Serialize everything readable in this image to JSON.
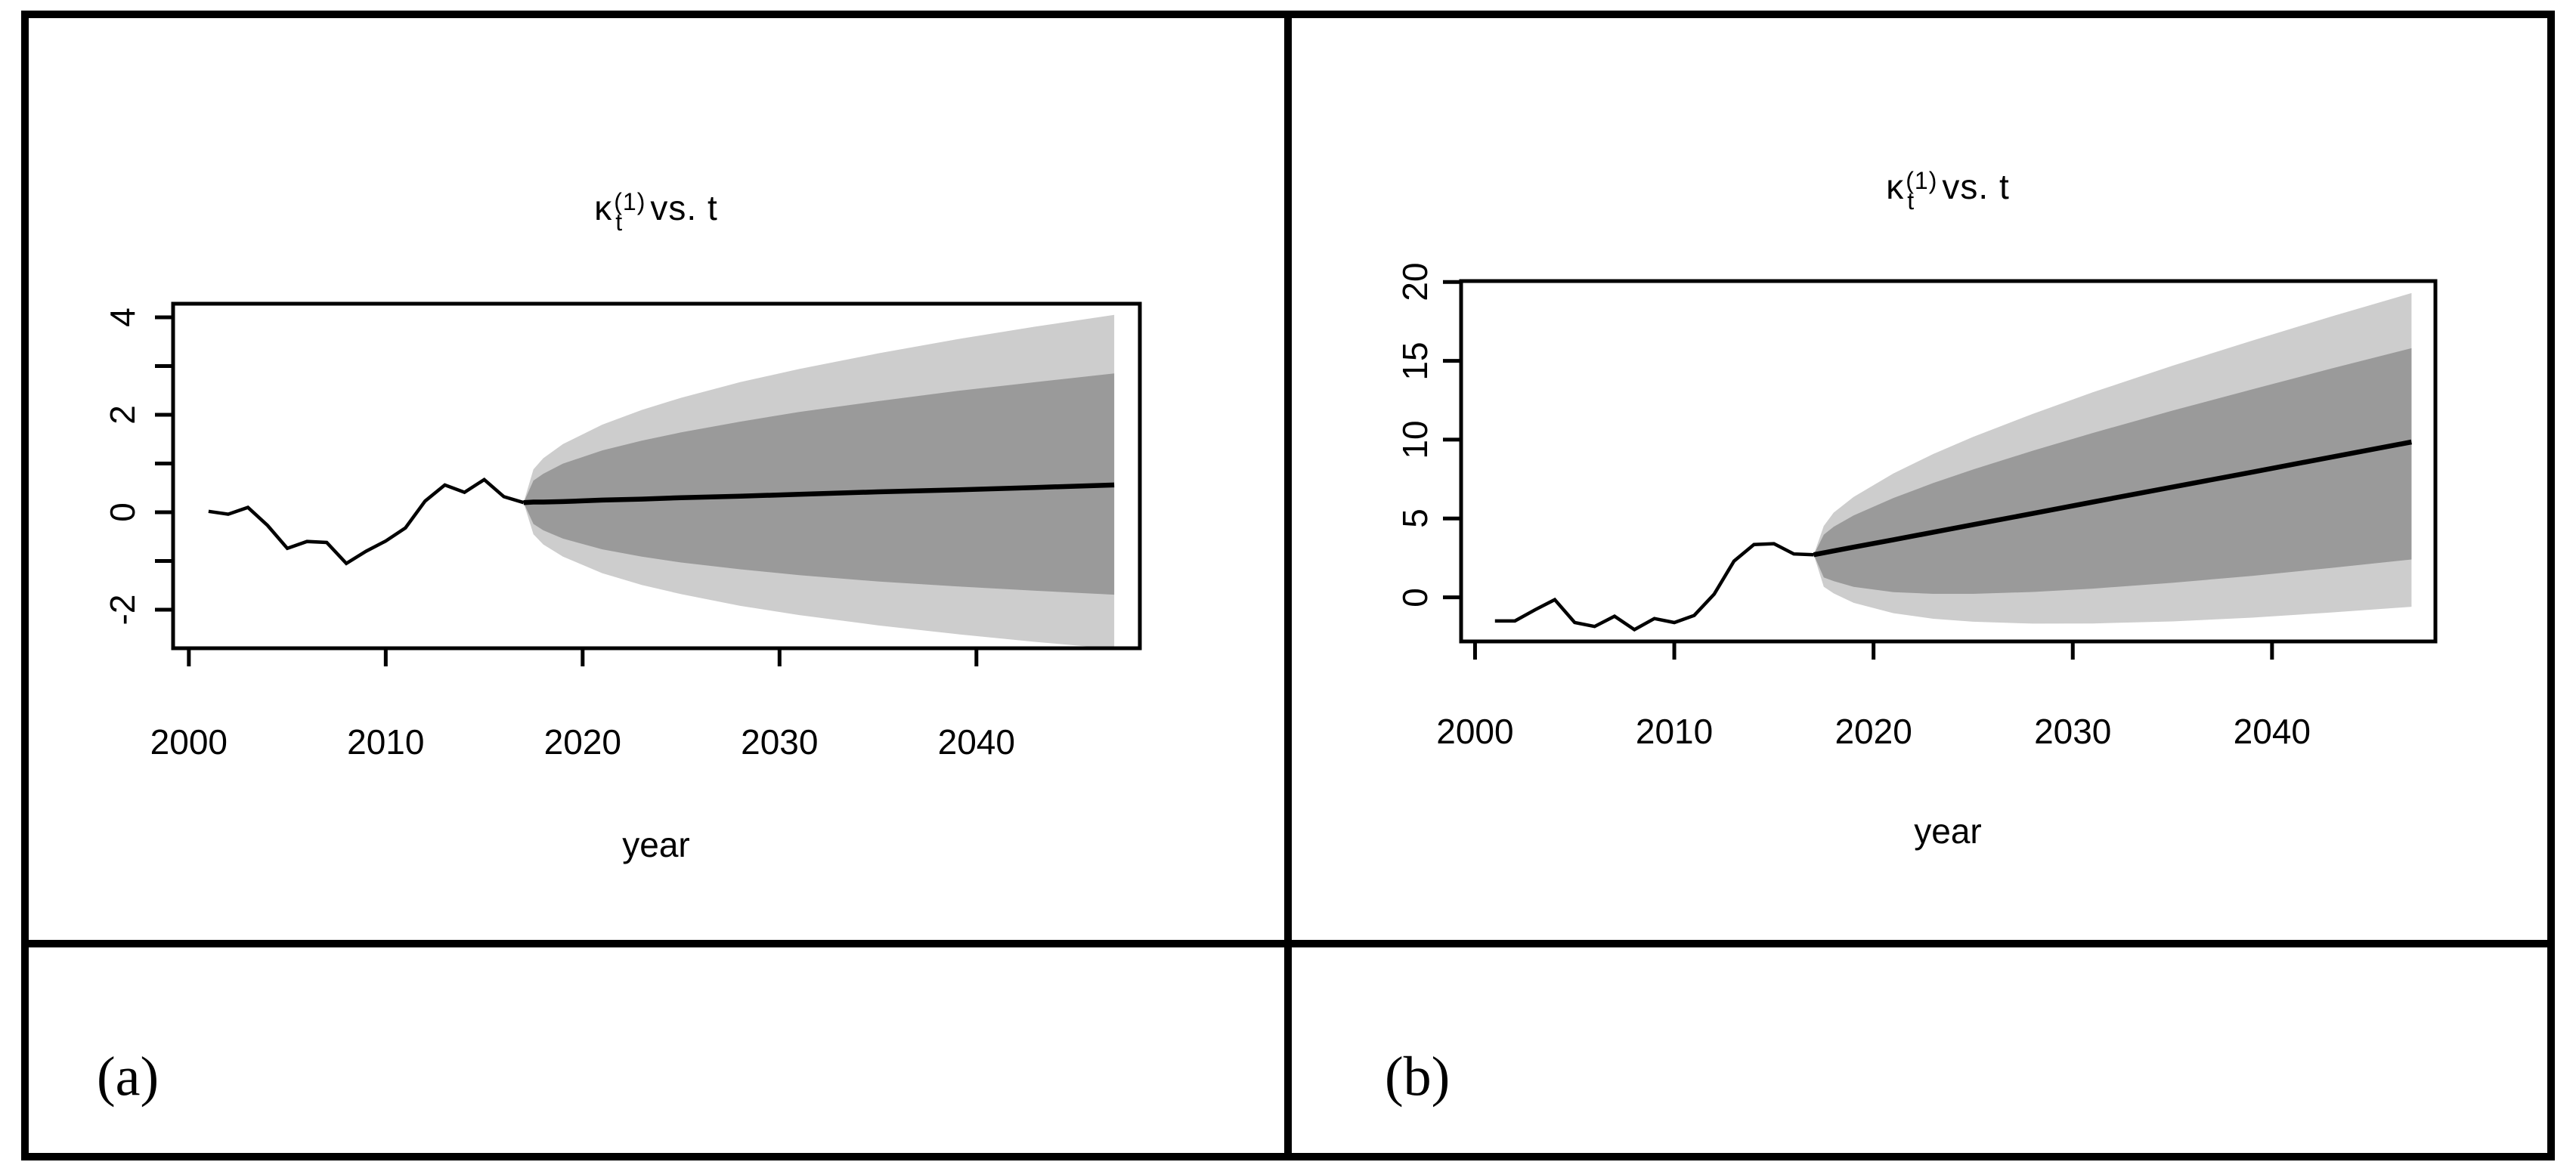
{
  "figure": {
    "kind": "two-panel R fan chart figure",
    "background": "#ffffff",
    "border_color": "#000000"
  },
  "panels": [
    {
      "id": "a",
      "caption": "(a)",
      "title": {
        "kappa": "κ",
        "sub": "t",
        "sup": "(1)",
        "rest": "vs. t"
      },
      "chart_data": {
        "type": "fan-line",
        "title_text": "κ_t^(1) vs. t",
        "xlabel": "year",
        "ylabel": "",
        "xlim": [
          1999.2,
          2048.3
        ],
        "ylim": [
          -2.79,
          4.28
        ],
        "x_ticks": [
          2000,
          2010,
          2020,
          2030,
          2040
        ],
        "y_ticks": [
          -2,
          -1,
          0,
          1,
          2,
          3,
          4
        ],
        "y_tick_labels": [
          "-2",
          "0",
          "2",
          "4"
        ],
        "y_labeled_values": [
          -2,
          0,
          2,
          4
        ],
        "grid": false,
        "legend": "none",
        "historical": {
          "x": [
            2001,
            2002,
            2003,
            2004,
            2005,
            2006,
            2007,
            2008,
            2009,
            2010,
            2011,
            2012,
            2013,
            2014,
            2015,
            2016,
            2017
          ],
          "y": [
            0.02,
            -0.04,
            0.1,
            -0.27,
            -0.74,
            -0.6,
            -0.62,
            -1.05,
            -0.8,
            -0.59,
            -0.32,
            0.23,
            0.56,
            0.41,
            0.67,
            0.32,
            0.2
          ]
        },
        "forecast": {
          "x": [
            2017,
            2017.5,
            2018,
            2019,
            2021,
            2023,
            2025,
            2028,
            2031,
            2035,
            2039,
            2043,
            2047
          ],
          "center": [
            0.2,
            0.21,
            0.21,
            0.22,
            0.25,
            0.27,
            0.3,
            0.33,
            0.37,
            0.42,
            0.46,
            0.51,
            0.56
          ],
          "band_inner_hi": [
            0.2,
            0.65,
            0.79,
            1.0,
            1.27,
            1.47,
            1.64,
            1.86,
            2.06,
            2.28,
            2.49,
            2.67,
            2.85
          ],
          "band_inner_lo": [
            0.2,
            -0.24,
            -0.37,
            -0.54,
            -0.76,
            -0.91,
            -1.03,
            -1.17,
            -1.29,
            -1.42,
            -1.52,
            -1.61,
            -1.69
          ],
          "band_outer_hi": [
            0.2,
            0.88,
            1.11,
            1.4,
            1.8,
            2.1,
            2.35,
            2.67,
            2.94,
            3.26,
            3.55,
            3.81,
            4.05
          ],
          "band_outer_lo": [
            0.2,
            -0.45,
            -0.66,
            -0.91,
            -1.25,
            -1.49,
            -1.68,
            -1.92,
            -2.11,
            -2.32,
            -2.5,
            -2.66,
            -2.8
          ]
        },
        "colors": {
          "band_inner": "#9a9a9a",
          "band_outer": "#cdcdcd",
          "line": "#000000",
          "box": "#000000"
        }
      }
    },
    {
      "id": "b",
      "caption": "(b)",
      "title": {
        "kappa": "κ",
        "sub": "t",
        "sup": "(1)",
        "rest": "vs. t"
      },
      "chart_data": {
        "type": "fan-line",
        "title_text": "κ_t^(1) vs. t",
        "xlabel": "year",
        "ylabel": "",
        "xlim": [
          1999.3,
          2048.2
        ],
        "ylim": [
          -2.8,
          20.06
        ],
        "x_ticks": [
          2000,
          2010,
          2020,
          2030,
          2040
        ],
        "y_ticks": [
          0,
          5,
          10,
          15,
          20
        ],
        "y_tick_labels": [
          "0",
          "5",
          "10",
          "15",
          "20"
        ],
        "y_labeled_values": [
          0,
          5,
          10,
          15,
          20
        ],
        "grid": false,
        "legend": "none",
        "historical": {
          "x": [
            2001,
            2002,
            2003,
            2004,
            2005,
            2006,
            2007,
            2008,
            2009,
            2010,
            2011,
            2012,
            2013,
            2014,
            2015,
            2016,
            2017
          ],
          "y": [
            -1.5,
            -1.5,
            -0.8,
            -0.15,
            -1.6,
            -1.85,
            -1.2,
            -2.05,
            -1.35,
            -1.6,
            -1.15,
            0.2,
            2.3,
            3.35,
            3.4,
            2.75,
            2.7
          ]
        },
        "forecast": {
          "x": [
            2017,
            2017.5,
            2018,
            2019,
            2021,
            2023,
            2025,
            2028,
            2031,
            2035,
            2039,
            2043,
            2047
          ],
          "center": [
            2.7,
            2.82,
            2.94,
            3.18,
            3.65,
            4.13,
            4.61,
            5.32,
            6.04,
            6.99,
            7.94,
            8.9,
            9.85
          ],
          "band_inner_hi": [
            2.7,
            3.97,
            4.47,
            5.19,
            6.3,
            7.25,
            8.11,
            9.3,
            10.42,
            11.84,
            13.19,
            14.52,
            15.8
          ],
          "band_inner_lo": [
            2.7,
            1.26,
            1.03,
            0.66,
            0.33,
            0.22,
            0.22,
            0.34,
            0.55,
            0.92,
            1.36,
            1.87,
            2.4
          ],
          "band_outer_hi": [
            2.7,
            4.53,
            5.37,
            6.37,
            7.86,
            9.09,
            10.18,
            11.64,
            13.0,
            14.69,
            16.28,
            17.82,
            19.3
          ],
          "band_outer_lo": [
            2.7,
            0.67,
            0.25,
            -0.35,
            -1.01,
            -1.36,
            -1.55,
            -1.67,
            -1.66,
            -1.53,
            -1.29,
            -0.96,
            -0.6
          ]
        },
        "colors": {
          "band_inner": "#9a9a9a",
          "band_outer": "#cdcdcd",
          "line": "#000000",
          "box": "#000000"
        }
      }
    }
  ]
}
